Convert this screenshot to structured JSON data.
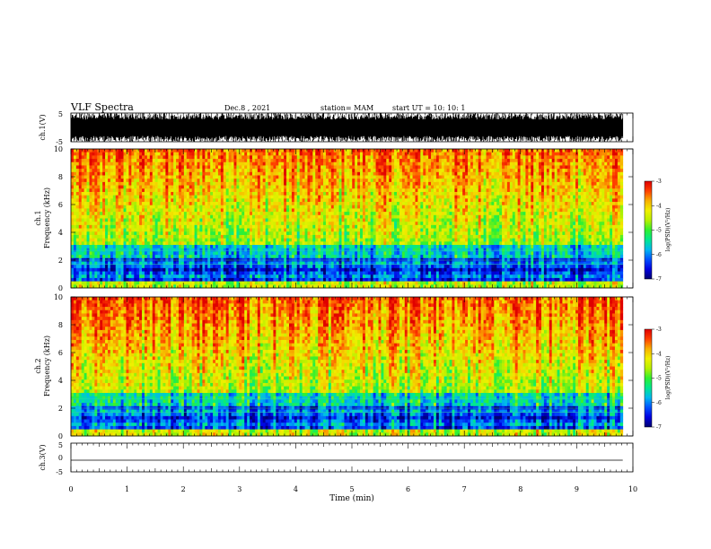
{
  "header": {
    "title": "VLF Spectra",
    "date": "Dec.8 , 2021",
    "station": "station= MAM",
    "start": "start UT = 10: 10: 1"
  },
  "chart_data": [
    {
      "type": "line",
      "panel": "ch1-waveform",
      "ylabel": "ch.1(V)",
      "ylim": [
        -5,
        5
      ],
      "yticks": [
        "5",
        "-5"
      ],
      "xlim": [
        0,
        10
      ],
      "data_extent_min": 9.82,
      "description": "dense waveform saturating between -5 and 5 V"
    },
    {
      "type": "heatmap",
      "panel": "ch1-spectrogram",
      "ylabel_top": "ch.1",
      "ylabel": "Frequency (kHz)",
      "ylim": [
        0,
        10
      ],
      "yticks": [
        "0",
        "2",
        "4",
        "6",
        "8",
        "10"
      ],
      "xlim": [
        0,
        10
      ],
      "data_extent_min": 9.82,
      "colorbar": {
        "label": "log(PSD)(V²/Hz)",
        "range": [
          -7,
          -3
        ],
        "ticks": [
          "-3",
          "-4",
          "-5",
          "-6",
          "-7"
        ]
      }
    },
    {
      "type": "heatmap",
      "panel": "ch2-spectrogram",
      "ylabel_top": "ch.2",
      "ylabel": "Frequency (kHz)",
      "ylim": [
        0,
        10
      ],
      "yticks": [
        "0",
        "2",
        "4",
        "6",
        "8",
        "10"
      ],
      "xlim": [
        0,
        10
      ],
      "data_extent_min": 9.82,
      "colorbar": {
        "label": "log(PSD)(V²/Hz)",
        "range": [
          -7,
          -3
        ],
        "ticks": [
          "-3",
          "-4",
          "-5",
          "-6",
          "-7"
        ]
      }
    },
    {
      "type": "line",
      "panel": "ch3-waveform",
      "ylabel": "ch.3(V)",
      "ylim": [
        -5,
        5
      ],
      "yticks": [
        "5",
        "0",
        "-5"
      ],
      "xlim": [
        0,
        10
      ],
      "data_extent_min": 9.82,
      "description": "flat trace near -1 V"
    }
  ],
  "xaxis": {
    "label": "Time (min)",
    "ticks": [
      "0",
      "1",
      "2",
      "3",
      "4",
      "5",
      "6",
      "7",
      "8",
      "9",
      "10"
    ]
  },
  "colors": {
    "axis": "#000000",
    "colormap": [
      "#000070",
      "#0000e0",
      "#0050ff",
      "#00b8f0",
      "#00e890",
      "#30f030",
      "#b8f000",
      "#f0f000",
      "#f8b000",
      "#ff4000",
      "#e00000"
    ]
  }
}
